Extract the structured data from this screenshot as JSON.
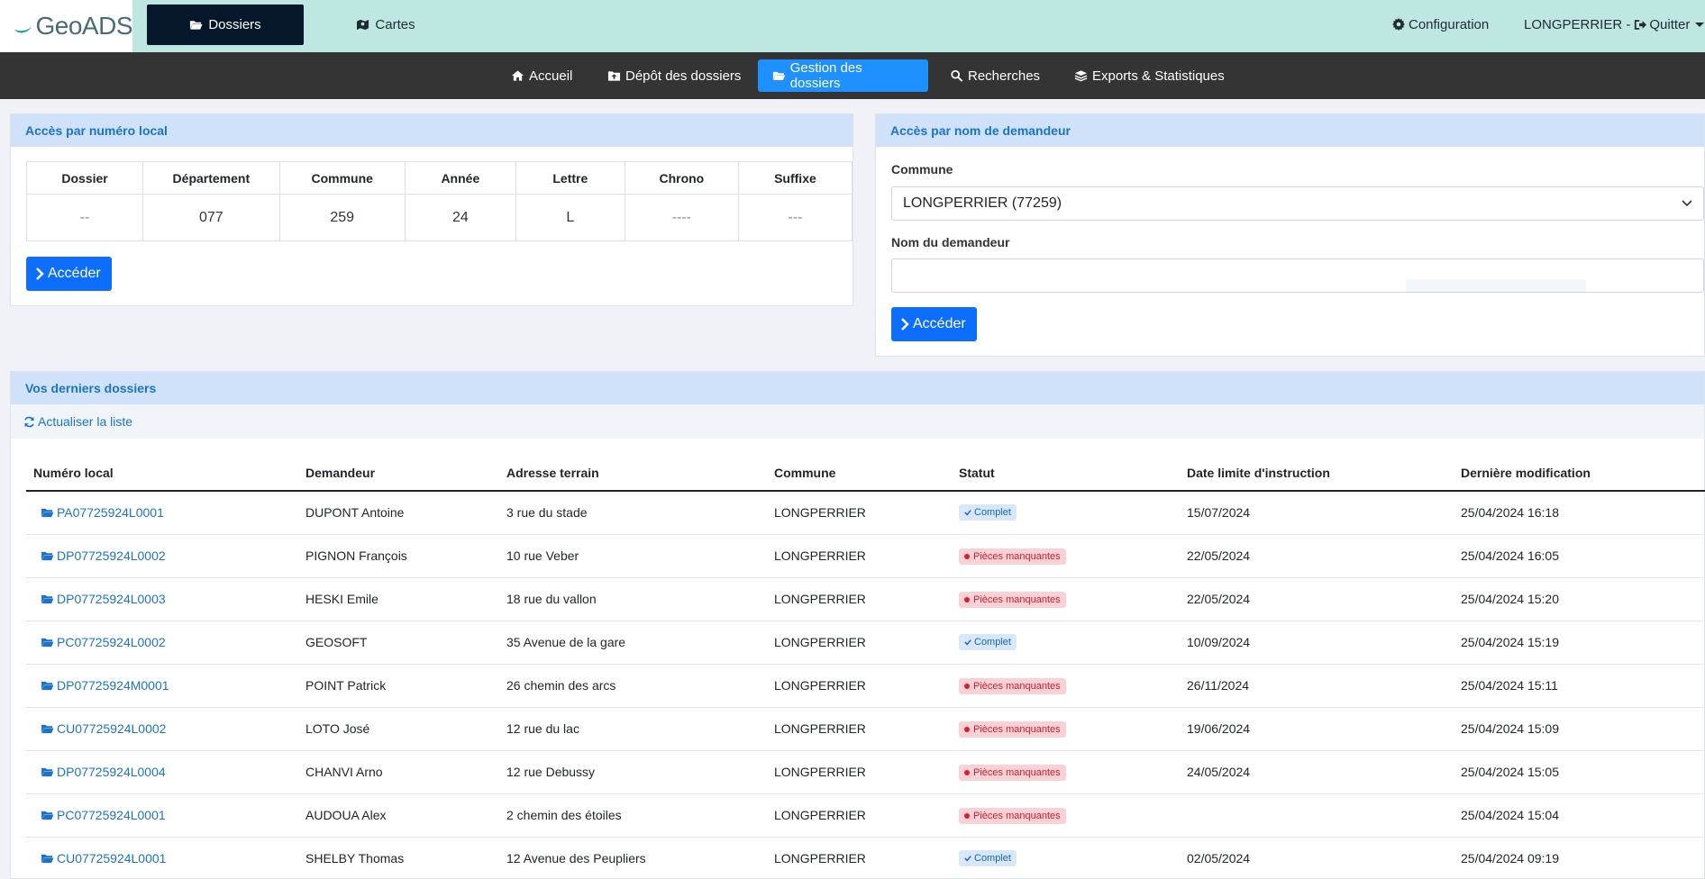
{
  "app": {
    "logo_text": "GeoADS"
  },
  "topbar": {
    "tabs": [
      {
        "label": "Dossiers",
        "icon": "folder-open-icon"
      },
      {
        "label": "Cartes",
        "icon": "map-icon"
      }
    ],
    "configuration_label": "Configuration",
    "user_label": "LONGPERRIER -",
    "quit_label": "Quitter"
  },
  "nav": {
    "items": [
      {
        "label": "Accueil",
        "icon": "home-icon"
      },
      {
        "label": "Dépôt des dossiers",
        "icon": "folder-upload-icon"
      },
      {
        "label": "Gestion des dossiers",
        "icon": "folder-open-icon"
      },
      {
        "label": "Recherches",
        "icon": "search-icon"
      },
      {
        "label": "Exports & Statistiques",
        "icon": "layers-icon"
      }
    ],
    "active": "Gestion des dossiers"
  },
  "local_access": {
    "title": "Accès par numéro local",
    "headers": [
      "Dossier",
      "Département",
      "Commune",
      "Année",
      "Lettre",
      "Chrono",
      "Suffixe"
    ],
    "values": [
      "--",
      "077",
      "259",
      "24",
      "L",
      "----",
      "---"
    ],
    "button_label": "Accéder"
  },
  "name_access": {
    "title": "Accès par nom de demandeur",
    "commune_label": "Commune",
    "commune_value": "LONGPERRIER (77259)",
    "name_label": "Nom du demandeur",
    "name_value": "",
    "button_label": "Accéder"
  },
  "recent": {
    "title": "Vos derniers dossiers",
    "refresh_label": "Actualiser la liste",
    "headers": [
      "Numéro local",
      "Demandeur",
      "Adresse terrain",
      "Commune",
      "Statut",
      "Date limite d'instruction",
      "Dernière modification"
    ],
    "rows": [
      {
        "numero": "PA07725924L0001",
        "demandeur": "DUPONT Antoine",
        "adresse": "3 rue du stade",
        "commune": "LONGPERRIER",
        "statut": "Complet",
        "statut_type": "ok",
        "date_limite": "15/07/2024",
        "modif": "25/04/2024 16:18"
      },
      {
        "numero": "DP07725924L0002",
        "demandeur": "PIGNON François",
        "adresse": "10 rue Veber",
        "commune": "LONGPERRIER",
        "statut": "Pièces manquantes",
        "statut_type": "missing",
        "date_limite": "22/05/2024",
        "modif": "25/04/2024 16:05"
      },
      {
        "numero": "DP07725924L0003",
        "demandeur": "HESKI Emile",
        "adresse": "18 rue du vallon",
        "commune": "LONGPERRIER",
        "statut": "Pièces manquantes",
        "statut_type": "missing",
        "date_limite": "22/05/2024",
        "modif": "25/04/2024 15:20"
      },
      {
        "numero": "PC07725924L0002",
        "demandeur": "GEOSOFT",
        "adresse": "35 Avenue de la gare",
        "commune": "LONGPERRIER",
        "statut": "Complet",
        "statut_type": "ok",
        "date_limite": "10/09/2024",
        "modif": "25/04/2024 15:19"
      },
      {
        "numero": "DP07725924M0001",
        "demandeur": "POINT Patrick",
        "adresse": "26 chemin des arcs",
        "commune": "LONGPERRIER",
        "statut": "Pièces manquantes",
        "statut_type": "missing",
        "date_limite": "26/11/2024",
        "modif": "25/04/2024 15:11"
      },
      {
        "numero": "CU07725924L0002",
        "demandeur": "LOTO José",
        "adresse": "12 rue du lac",
        "commune": "LONGPERRIER",
        "statut": "Pièces manquantes",
        "statut_type": "missing",
        "date_limite": "19/06/2024",
        "modif": "25/04/2024 15:09"
      },
      {
        "numero": "DP07725924L0004",
        "demandeur": "CHANVI Arno",
        "adresse": "12 rue Debussy",
        "commune": "LONGPERRIER",
        "statut": "Pièces manquantes",
        "statut_type": "missing",
        "date_limite": "24/05/2024",
        "modif": "25/04/2024 15:05"
      },
      {
        "numero": "PC07725924L0001",
        "demandeur": "AUDOUA Alex",
        "adresse": "2 chemin des étoiles",
        "commune": "LONGPERRIER",
        "statut": "Pièces manquantes",
        "statut_type": "missing",
        "date_limite": "",
        "modif": "25/04/2024 15:04"
      },
      {
        "numero": "CU07725924L0001",
        "demandeur": "SHELBY Thomas",
        "adresse": "12 Avenue des Peupliers",
        "commune": "LONGPERRIER",
        "statut": "Complet",
        "statut_type": "ok",
        "date_limite": "02/05/2024",
        "modif": "25/04/2024 09:19"
      }
    ]
  },
  "colors": {
    "topbar_bg": "#bfe7e2",
    "active_tab_bg": "#06172b",
    "nav_bg": "#343434",
    "nav_active_bg": "#1e90ff",
    "primary_button": "#0d6efd",
    "card_header_bg": "#cfe2fa",
    "link": "#1a73c9",
    "badge_ok_bg": "#d7e8fb",
    "badge_missing_bg": "#fad2d6"
  }
}
